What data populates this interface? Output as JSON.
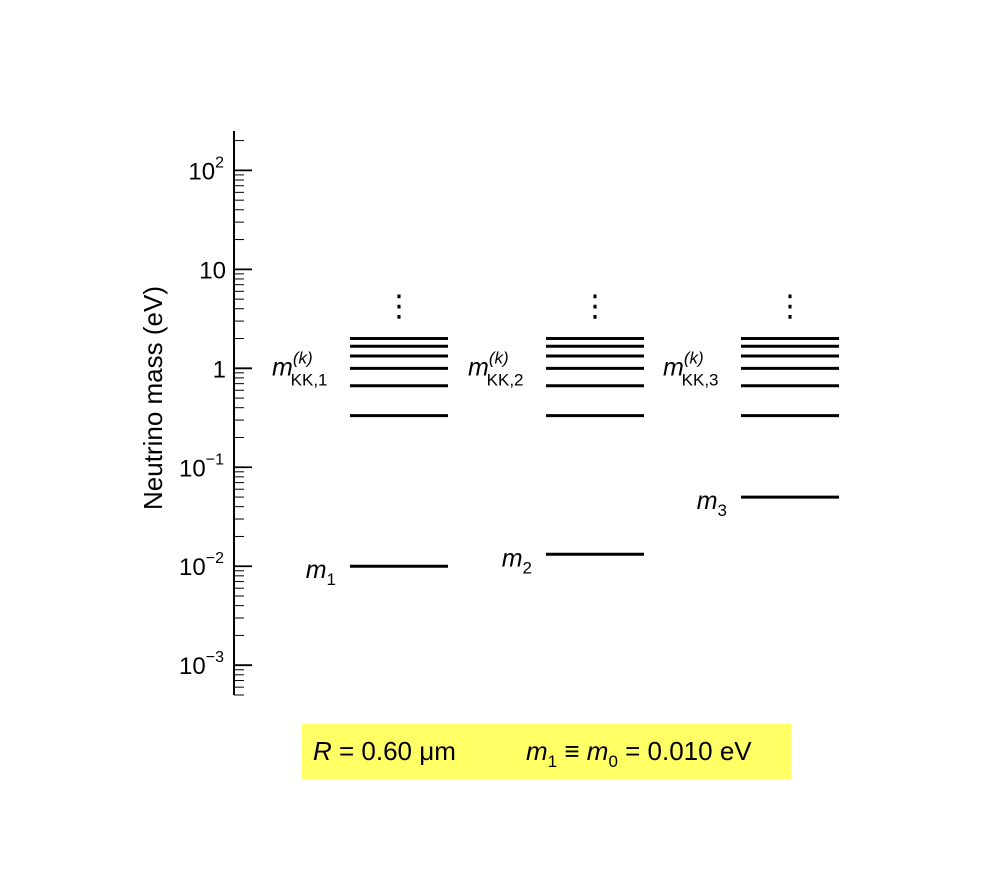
{
  "chart_data": {
    "type": "level-diagram",
    "yscale": "log",
    "ylim": [
      0.0005,
      250
    ],
    "ylabel": "Neutrino mass (eV)",
    "ytick_labels": [
      {
        "value": 0.001,
        "base": "10",
        "exp": "−3"
      },
      {
        "value": 0.01,
        "base": "10",
        "exp": "−2"
      },
      {
        "value": 0.1,
        "base": "10",
        "exp": "−1"
      },
      {
        "value": 1,
        "base": "1",
        "exp": ""
      },
      {
        "value": 10,
        "base": "10",
        "exp": ""
      },
      {
        "value": 100,
        "base": "10",
        "exp": "2"
      }
    ],
    "columns": [
      {
        "mass_label": {
          "symbol": "m",
          "sub": "1"
        },
        "mass_value": 0.01,
        "kk_label": {
          "symbol": "m",
          "sup": "(k)",
          "sub": "KK,1"
        },
        "kk_levels": [
          0.333,
          0.667,
          1.0,
          1.33,
          1.67,
          2.0
        ],
        "continuation": "⋮"
      },
      {
        "mass_label": {
          "symbol": "m",
          "sub": "2"
        },
        "mass_value": 0.0132,
        "kk_label": {
          "symbol": "m",
          "sup": "(k)",
          "sub": "KK,2"
        },
        "kk_levels": [
          0.333,
          0.667,
          1.0,
          1.33,
          1.67,
          2.0
        ],
        "continuation": "⋮"
      },
      {
        "mass_label": {
          "symbol": "m",
          "sub": "3"
        },
        "mass_value": 0.05,
        "kk_label": {
          "symbol": "m",
          "sup": "(k)",
          "sub": "KK,3"
        },
        "kk_levels": [
          0.333,
          0.667,
          1.0,
          1.33,
          1.67,
          2.0
        ],
        "continuation": "⋮"
      }
    ]
  },
  "annotation": {
    "background": "#ffff66",
    "r_symbol": "R",
    "r_rest": " = 0.60 μm",
    "m1_symbol": "m",
    "m1_sub": "1",
    "equiv": " ≡ ",
    "m0_symbol": "m",
    "m0_sub": "0",
    "m0_rest": " = 0.010 eV"
  }
}
